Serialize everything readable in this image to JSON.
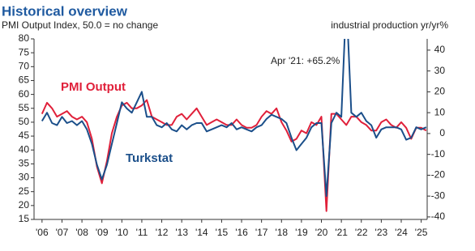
{
  "chart_data": {
    "type": "line",
    "title": "Historical overview",
    "subtitle": "PMI Output Index, 50.0 = no change",
    "y2_label": "industrial production yr/yr%",
    "annotation": "Apr '21: +65.2%",
    "x": [
      2006,
      2006.25,
      2006.5,
      2006.75,
      2007,
      2007.25,
      2007.5,
      2007.75,
      2008,
      2008.25,
      2008.5,
      2008.75,
      2009,
      2009.25,
      2009.5,
      2009.75,
      2010,
      2010.25,
      2010.5,
      2010.75,
      2011,
      2011.25,
      2011.5,
      2011.75,
      2012,
      2012.25,
      2012.5,
      2012.75,
      2013,
      2013.25,
      2013.5,
      2013.75,
      2014,
      2014.25,
      2014.5,
      2014.75,
      2015,
      2015.25,
      2015.5,
      2015.75,
      2016,
      2016.25,
      2016.5,
      2016.75,
      2017,
      2017.25,
      2017.5,
      2017.75,
      2018,
      2018.25,
      2018.5,
      2018.75,
      2019,
      2019.25,
      2019.5,
      2019.75,
      2020,
      2020.25,
      2020.5,
      2020.75,
      2021,
      2021.25,
      2021.5,
      2021.75,
      2022,
      2022.25,
      2022.5,
      2022.75,
      2023,
      2023.25,
      2023.5,
      2023.75,
      2024,
      2024.25,
      2024.5,
      2024.75,
      2025,
      2025.25
    ],
    "series": [
      {
        "name": "PMI Output",
        "color": "#e0203a",
        "axis": "y",
        "values": [
          53,
          57,
          55,
          52,
          53,
          54,
          52,
          51,
          52,
          50,
          44,
          34,
          28,
          36,
          46,
          52,
          56,
          57,
          55,
          55,
          56,
          58,
          52,
          51,
          50,
          49,
          49,
          52,
          53,
          51,
          53,
          55,
          52,
          49,
          50,
          51,
          50,
          49,
          49,
          51,
          49,
          48,
          48,
          49,
          52,
          54,
          53,
          55,
          50,
          47,
          43,
          44,
          47,
          46,
          50,
          49,
          52,
          18,
          53,
          53,
          51,
          49,
          52,
          52,
          50,
          49,
          47,
          47,
          50,
          51,
          49,
          48,
          50,
          48,
          44,
          48,
          48,
          47
        ]
      },
      {
        "name": "Turkstat",
        "color": "#1b4f8a",
        "axis": "y2",
        "values": [
          6,
          10,
          5,
          4,
          8,
          5,
          6,
          4,
          6,
          2,
          -5,
          -15,
          -22,
          -15,
          -5,
          5,
          15,
          12,
          10,
          15,
          20,
          8,
          8,
          4,
          3,
          5,
          2,
          1,
          4,
          2,
          4,
          5,
          5,
          1,
          2,
          3,
          4,
          3,
          5,
          2,
          3,
          2,
          1,
          3,
          4,
          7,
          9,
          8,
          7,
          5,
          -2,
          -8,
          -5,
          -2,
          3,
          5,
          5,
          -30,
          5,
          10,
          8,
          65.2,
          10,
          8,
          10,
          6,
          4,
          -2,
          2,
          3,
          3,
          3,
          2,
          -3,
          -2,
          3,
          2,
          3
        ]
      }
    ],
    "xlim": [
      2005.6,
      2025.3
    ],
    "xticks": [
      {
        "value": 2006,
        "label": "'06"
      },
      {
        "value": 2007,
        "label": "'07"
      },
      {
        "value": 2008,
        "label": "'08"
      },
      {
        "value": 2009,
        "label": "'09"
      },
      {
        "value": 2010,
        "label": "'10"
      },
      {
        "value": 2011,
        "label": "'11"
      },
      {
        "value": 2012,
        "label": "'12"
      },
      {
        "value": 2013,
        "label": "'13"
      },
      {
        "value": 2014,
        "label": "'14"
      },
      {
        "value": 2015,
        "label": "'15"
      },
      {
        "value": 2016,
        "label": "'16"
      },
      {
        "value": 2017,
        "label": "'17"
      },
      {
        "value": 2018,
        "label": "'18"
      },
      {
        "value": 2019,
        "label": "'19"
      },
      {
        "value": 2020,
        "label": "'20"
      },
      {
        "value": 2021,
        "label": "'21"
      },
      {
        "value": 2022,
        "label": "'22"
      },
      {
        "value": 2023,
        "label": "'23"
      },
      {
        "value": 2024,
        "label": "'24"
      },
      {
        "value": 2025,
        "label": "'25"
      }
    ],
    "ylim": [
      15,
      80
    ],
    "yticks": [
      15,
      20,
      25,
      30,
      35,
      40,
      45,
      50,
      55,
      60,
      65,
      70,
      75,
      80
    ],
    "y2lim": [
      -41.2,
      45.4
    ],
    "y2ticks": [
      -40,
      -30,
      -20,
      -10,
      0,
      10,
      20,
      30,
      40
    ]
  }
}
